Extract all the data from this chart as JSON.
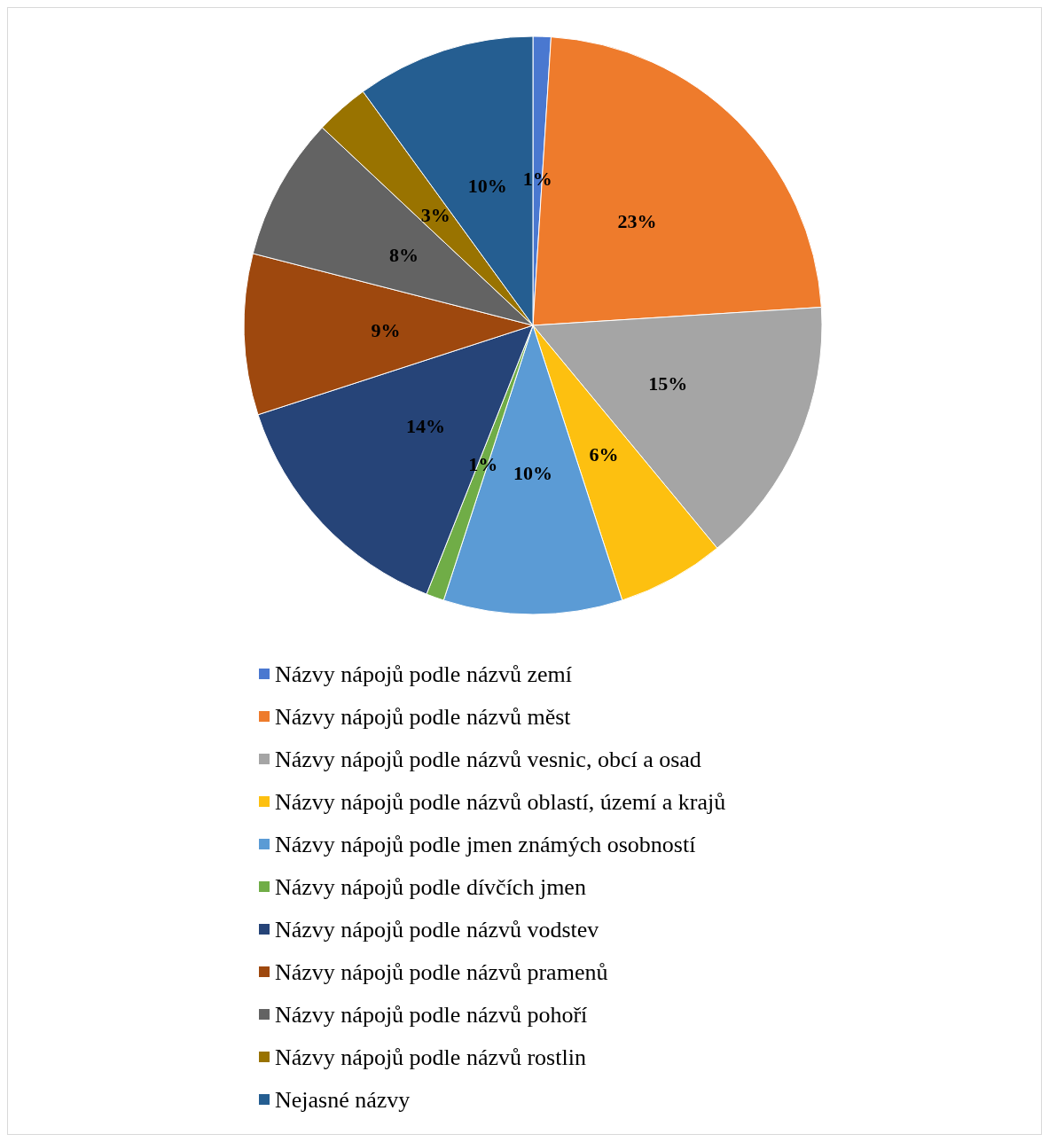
{
  "chart_data": {
    "type": "pie",
    "categories": [
      "Názvy nápojů podle názvů zemí",
      "Názvy nápojů podle názvů měst",
      "Názvy nápojů podle názvů vesnic, obcí a osad",
      "Názvy nápojů podle názvů oblastí, území a krajů",
      "Názvy nápojů podle jmen známých osobností",
      "Názvy nápojů podle dívčích jmen",
      "Názvy nápojů podle názvů vodstev",
      "Názvy nápojů podle názvů pramenů",
      "Názvy nápojů podle názvů pohoří",
      "Názvy nápojů podle názvů rostlin",
      "Nejasné názvy"
    ],
    "values": [
      1,
      23,
      15,
      6,
      10,
      1,
      14,
      9,
      8,
      3,
      10
    ],
    "value_labels": [
      "1%",
      "23%",
      "15%",
      "6%",
      "10%",
      "1%",
      "14%",
      "9%",
      "8%",
      "3%",
      "10%"
    ],
    "colors": [
      "#4a78d0",
      "#ee7b2c",
      "#a5a5a5",
      "#fdc010",
      "#5b9bd5",
      "#70ad47",
      "#264478",
      "#9e480e",
      "#636363",
      "#997300",
      "#255e91"
    ],
    "legend": "bottom"
  }
}
